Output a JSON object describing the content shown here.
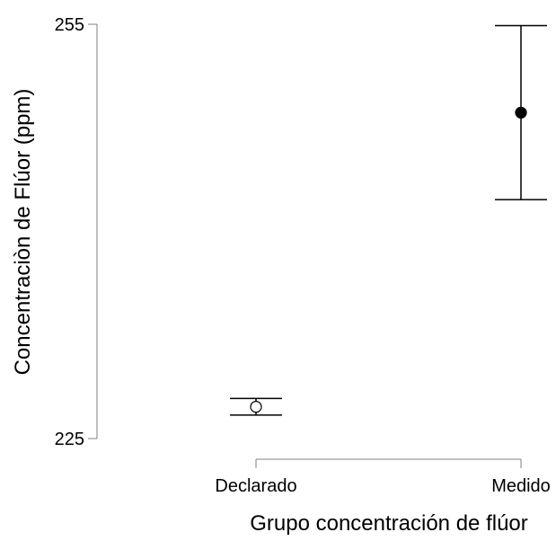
{
  "chart_data": {
    "type": "scatter",
    "xlabel": "Grupo concentración de flúor",
    "ylabel": "Concentraciòn de Flúor (ppm)",
    "categories": [
      "Declarado",
      "Medido"
    ],
    "ylim": [
      225,
      255
    ],
    "yticks": [
      {
        "label": "225",
        "value": 225
      },
      {
        "label": "255",
        "value": 255
      }
    ],
    "series": [
      {
        "points": [
          {
            "category": "Declarado",
            "value": 227.3,
            "lower": 226.7,
            "upper": 227.9,
            "marker": "open-circle"
          },
          {
            "category": "Medido",
            "value": 248.6,
            "lower": 242.3,
            "upper": 254.9,
            "marker": "filled-circle"
          }
        ]
      }
    ],
    "grid": false,
    "legend": "none"
  },
  "colors": {
    "ink": "#000000",
    "axis": "#808080",
    "background": "#ffffff"
  }
}
